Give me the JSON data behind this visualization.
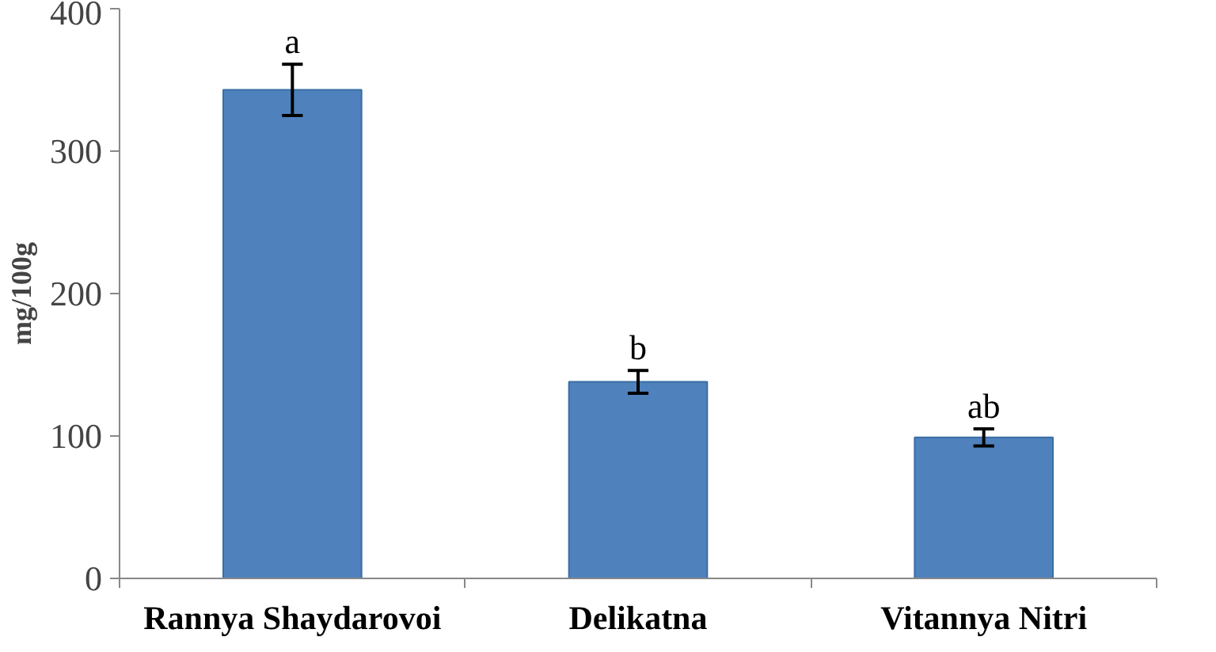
{
  "chart_data": {
    "type": "bar",
    "ylabel": "mg/100g",
    "categories": [
      "Rannya Shaydarovoi",
      "Delikatna",
      "Vitannya Nitri"
    ],
    "values": [
      343,
      138,
      99
    ],
    "errors": [
      18,
      8,
      6
    ],
    "color": "#4f81bd",
    "ylim": [
      0,
      400
    ],
    "yticks": [
      0,
      100,
      200,
      300,
      400
    ],
    "grid": false,
    "annotations": [
      {
        "text": "a",
        "x": "Rannya Shaydarovoi",
        "y": 361
      },
      {
        "text": "b",
        "x": "Delikatna",
        "y": 146
      },
      {
        "text": "ab",
        "x": "Vitannya Nitri",
        "y": 105
      }
    ]
  }
}
